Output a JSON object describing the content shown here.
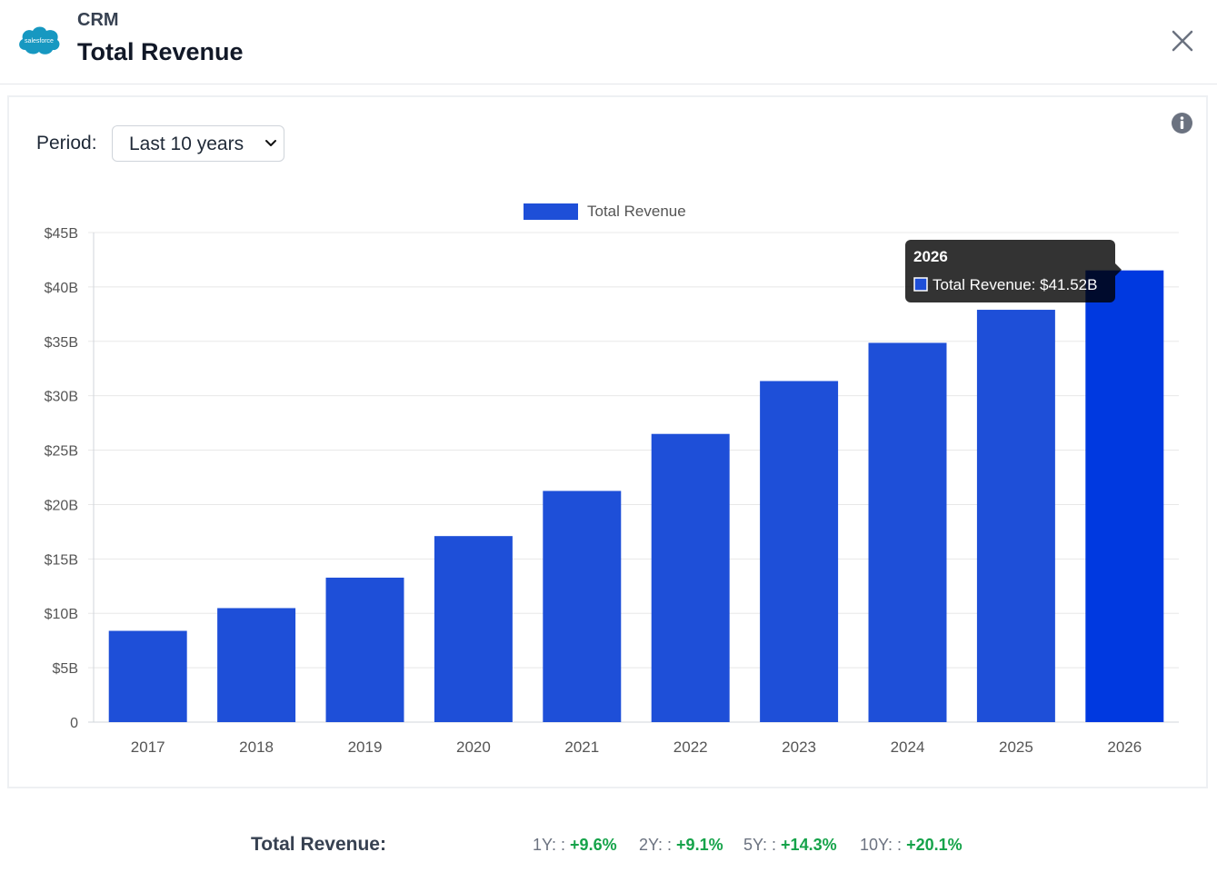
{
  "header": {
    "ticker": "CRM",
    "title": "Total Revenue",
    "logo_text": "salesforce",
    "brand_color": "#1798c1",
    "close_icon": "close-icon"
  },
  "controls": {
    "period_label": "Period:",
    "period_value": "Last 10 years",
    "info_icon": "info-icon"
  },
  "chart_data": {
    "type": "bar",
    "legend": "Total Revenue",
    "categories": [
      "2017",
      "2018",
      "2019",
      "2020",
      "2021",
      "2022",
      "2023",
      "2024",
      "2025",
      "2026"
    ],
    "values": [
      8.39,
      10.48,
      13.28,
      17.1,
      21.25,
      26.49,
      31.35,
      34.86,
      37.9,
      41.52
    ],
    "unit": "B",
    "ylim": [
      0,
      45
    ],
    "y_ticks": [
      "0",
      "$5B",
      "$10B",
      "$15B",
      "$20B",
      "$25B",
      "$30B",
      "$35B",
      "$40B",
      "$45B"
    ],
    "bar_color": "#1e4fd8",
    "highlight_color": "#0039e0",
    "grid": true,
    "tooltip": {
      "title": "2026",
      "label": "Total Revenue: $41.52B",
      "index": 9
    }
  },
  "footer": {
    "label": "Total Revenue:",
    "growth": [
      {
        "key": "1Y: :",
        "value": "+9.6%"
      },
      {
        "key": "2Y: :",
        "value": "+9.1%"
      },
      {
        "key": "5Y: :",
        "value": "+14.3%"
      },
      {
        "key": "10Y: :",
        "value": "+20.1%"
      }
    ]
  }
}
